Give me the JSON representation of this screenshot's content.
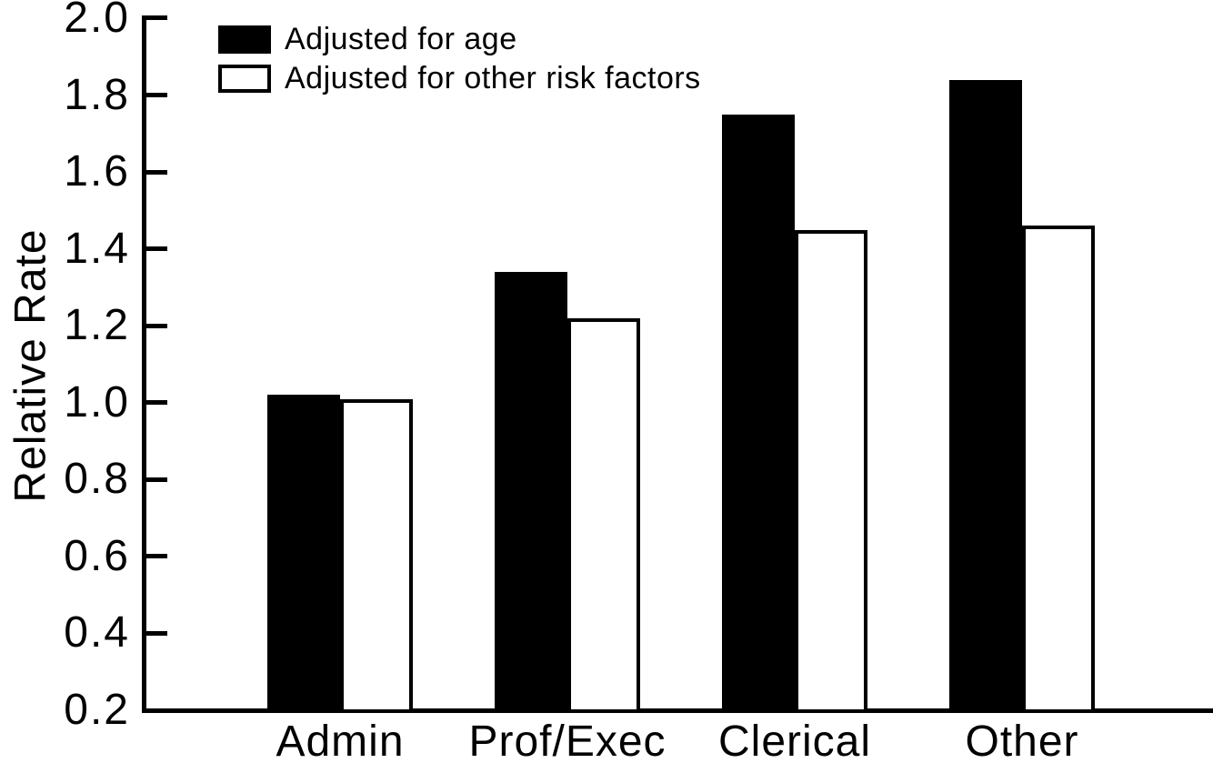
{
  "figure": {
    "background_color": "#ffffff",
    "ink_color": "#000000"
  },
  "chart_data": {
    "type": "bar",
    "title": "",
    "xlabel": "",
    "ylabel": "Relative Rate",
    "ylim": [
      0.2,
      2.0
    ],
    "grid": false,
    "legend_position": "top-left",
    "yticks": [
      2.0,
      1.8,
      1.6,
      1.4,
      1.2,
      1.0,
      0.8,
      0.6,
      0.4,
      0.2
    ],
    "ytick_labels": [
      "2.0",
      "1.8",
      "1.6",
      "1.4",
      "1.2",
      "1.0",
      "0.8",
      "0.6",
      "0.4",
      "0.2"
    ],
    "categories": [
      "Admin",
      "Prof/Exec",
      "Clerical",
      "Other"
    ],
    "series": [
      {
        "name": "Adjusted for age",
        "style": "filled",
        "fill": "#000000",
        "values": [
          1.02,
          1.34,
          1.75,
          1.84
        ]
      },
      {
        "name": "Adjusted for other risk factors",
        "style": "open",
        "fill": "#ffffff",
        "stroke": "#000000",
        "values": [
          1.01,
          1.22,
          1.45,
          1.46
        ]
      }
    ]
  }
}
